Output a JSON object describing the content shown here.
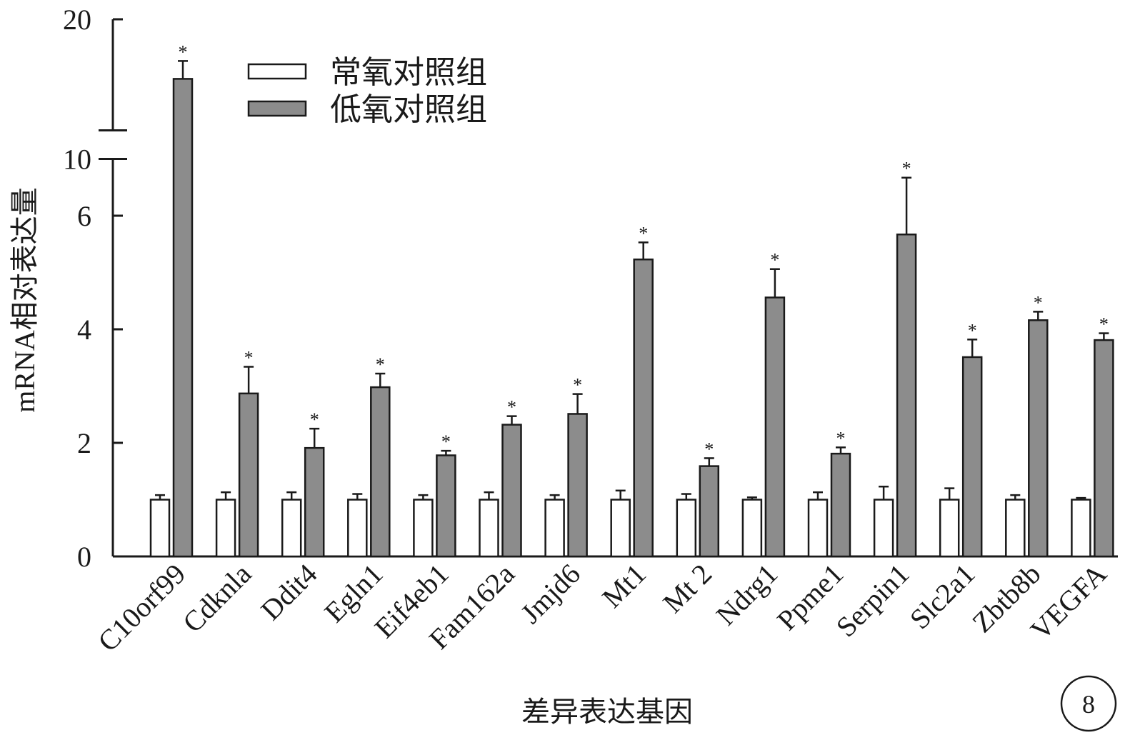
{
  "chart_data": {
    "type": "bar",
    "title": "",
    "xlabel": "差异表达基因",
    "ylabel": "mRNA相对表达量",
    "y_break": [
      7,
      10
    ],
    "ylim": [
      0,
      20
    ],
    "y_ticks": [
      {
        "value": 0,
        "label": "0"
      },
      {
        "value": 2,
        "label": "2"
      },
      {
        "value": 4,
        "label": "4"
      },
      {
        "value": 6,
        "label": "6"
      },
      {
        "value": 10,
        "label": "10"
      },
      {
        "value": 20,
        "label": "20"
      }
    ],
    "categories": [
      "C10orf99",
      "Cdknla",
      "Ddit4",
      "Egln1",
      "Eif4eb1",
      "Fam162a",
      "Jmjd6",
      "Mt1",
      "Mt 2",
      "Ndrg1",
      "Ppme1",
      "Serpin1",
      "Slc2a1",
      "Zbtb8b",
      "VEGFA"
    ],
    "series": [
      {
        "name": "常氧对照组",
        "color": "#ffffff",
        "values": [
          1,
          1,
          1,
          1,
          1,
          1,
          1,
          1,
          1,
          1,
          1,
          1,
          1,
          1,
          1
        ],
        "errors": [
          0.08,
          0.13,
          0.13,
          0.1,
          0.08,
          0.13,
          0.08,
          0.16,
          0.1,
          0.04,
          0.13,
          0.23,
          0.2,
          0.08,
          0.03
        ]
      },
      {
        "name": "低氧对照组",
        "color": "#8c8c8c",
        "values": [
          14,
          2.87,
          1.91,
          2.98,
          1.78,
          2.32,
          2.51,
          5.23,
          1.59,
          4.56,
          1.81,
          5.67,
          3.51,
          4.16,
          3.81
        ],
        "errors": [
          1.8,
          0.47,
          0.34,
          0.24,
          0.08,
          0.15,
          0.35,
          0.3,
          0.14,
          0.5,
          0.11,
          1.0,
          0.31,
          0.15,
          0.12
        ]
      }
    ],
    "significance_marker": "*",
    "legend_position": "top-left",
    "panel_label": "8"
  }
}
